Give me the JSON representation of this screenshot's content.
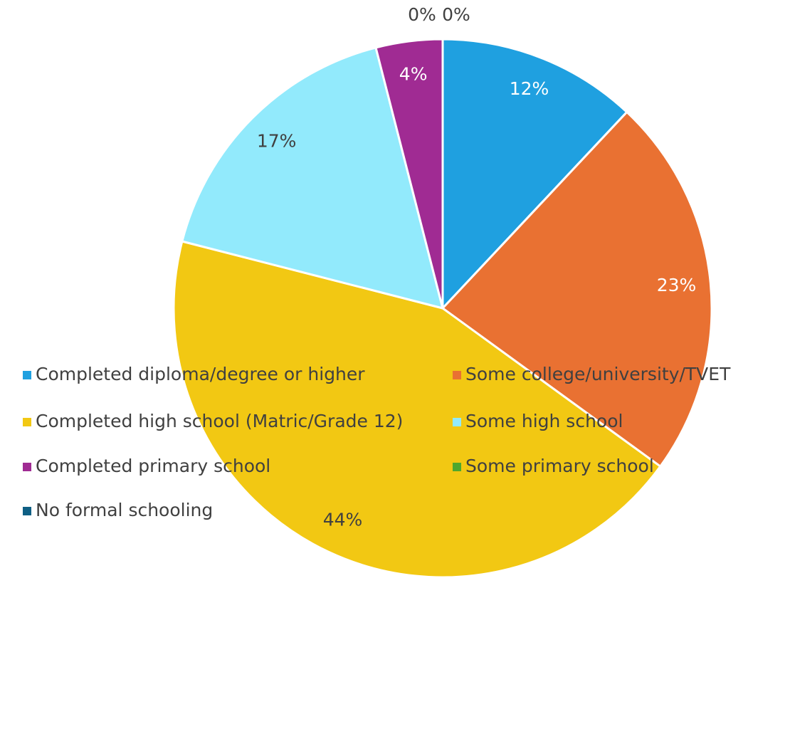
{
  "chart_data": {
    "type": "pie",
    "categories": [
      "Completed diploma/degree or higher",
      "Some college/university/TVET",
      "Completed high school (Matric/Grade 12)",
      "Some high school",
      "Completed primary school",
      "Some primary school",
      "No formal schooling"
    ],
    "values": [
      12,
      23,
      44,
      17,
      4,
      0,
      0
    ],
    "value_labels": [
      "12%",
      "23%",
      "44%",
      "17%",
      "4%",
      "0%",
      "0%"
    ],
    "colors": [
      "#1fa0e0",
      "#e97132",
      "#f2c813",
      "#92eafc",
      "#a02b93",
      "#4ea72e",
      "#0f5f84"
    ],
    "legend": "bottom"
  }
}
